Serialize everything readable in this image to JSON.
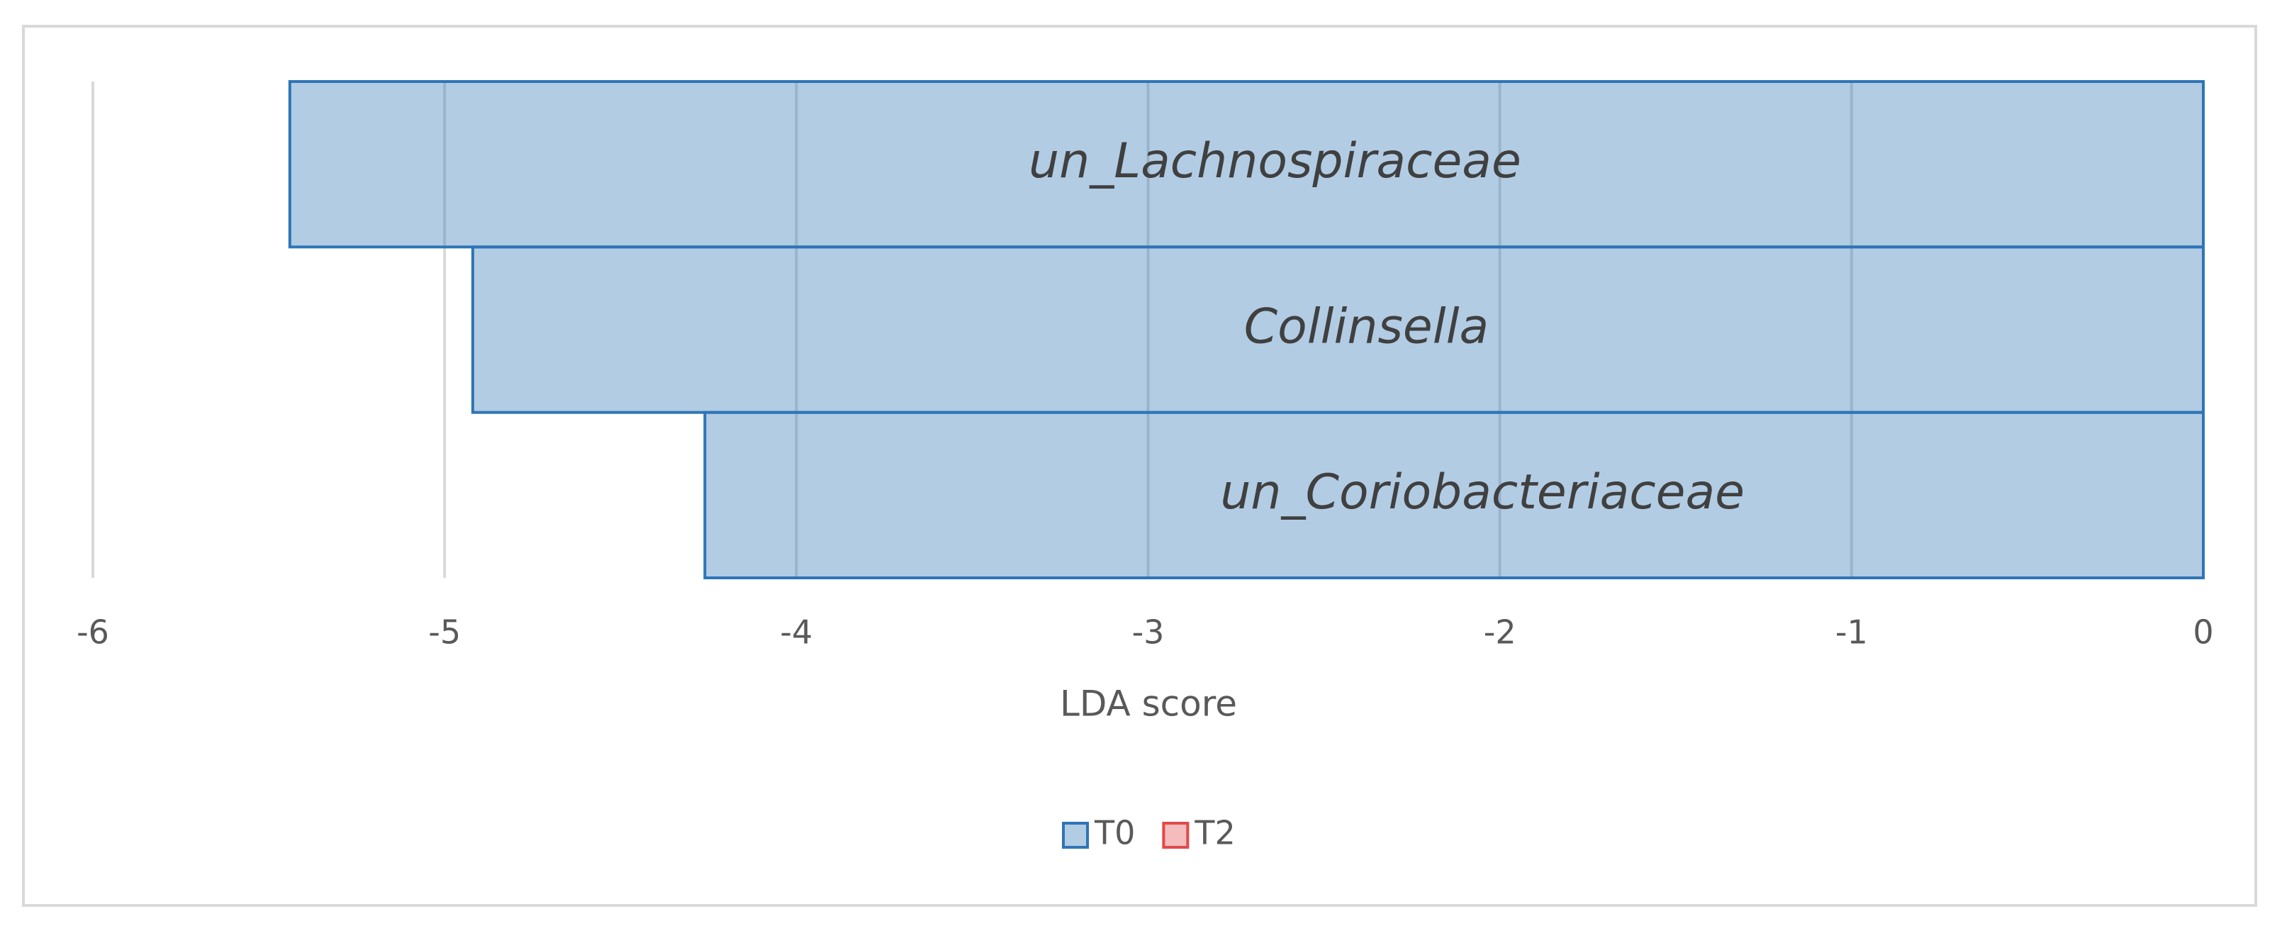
{
  "chart_data": {
    "type": "bar",
    "orientation": "horizontal",
    "xlabel": "LDA score",
    "categories": [
      "un_Lachnospiraceae",
      "Collinsella",
      "un_Coriobacteriaceae"
    ],
    "series": [
      {
        "name": "T0",
        "color": "#2e75b6",
        "values": [
          -5.44,
          -4.92,
          -4.26
        ]
      },
      {
        "name": "T2",
        "color": "#e04a4a",
        "values": [
          null,
          null,
          null
        ]
      }
    ],
    "xlim": [
      -6,
      0
    ],
    "xticks": [
      -6,
      -5,
      -4,
      -3,
      -2,
      -1,
      0
    ],
    "grid": true,
    "legend": "bottom"
  }
}
